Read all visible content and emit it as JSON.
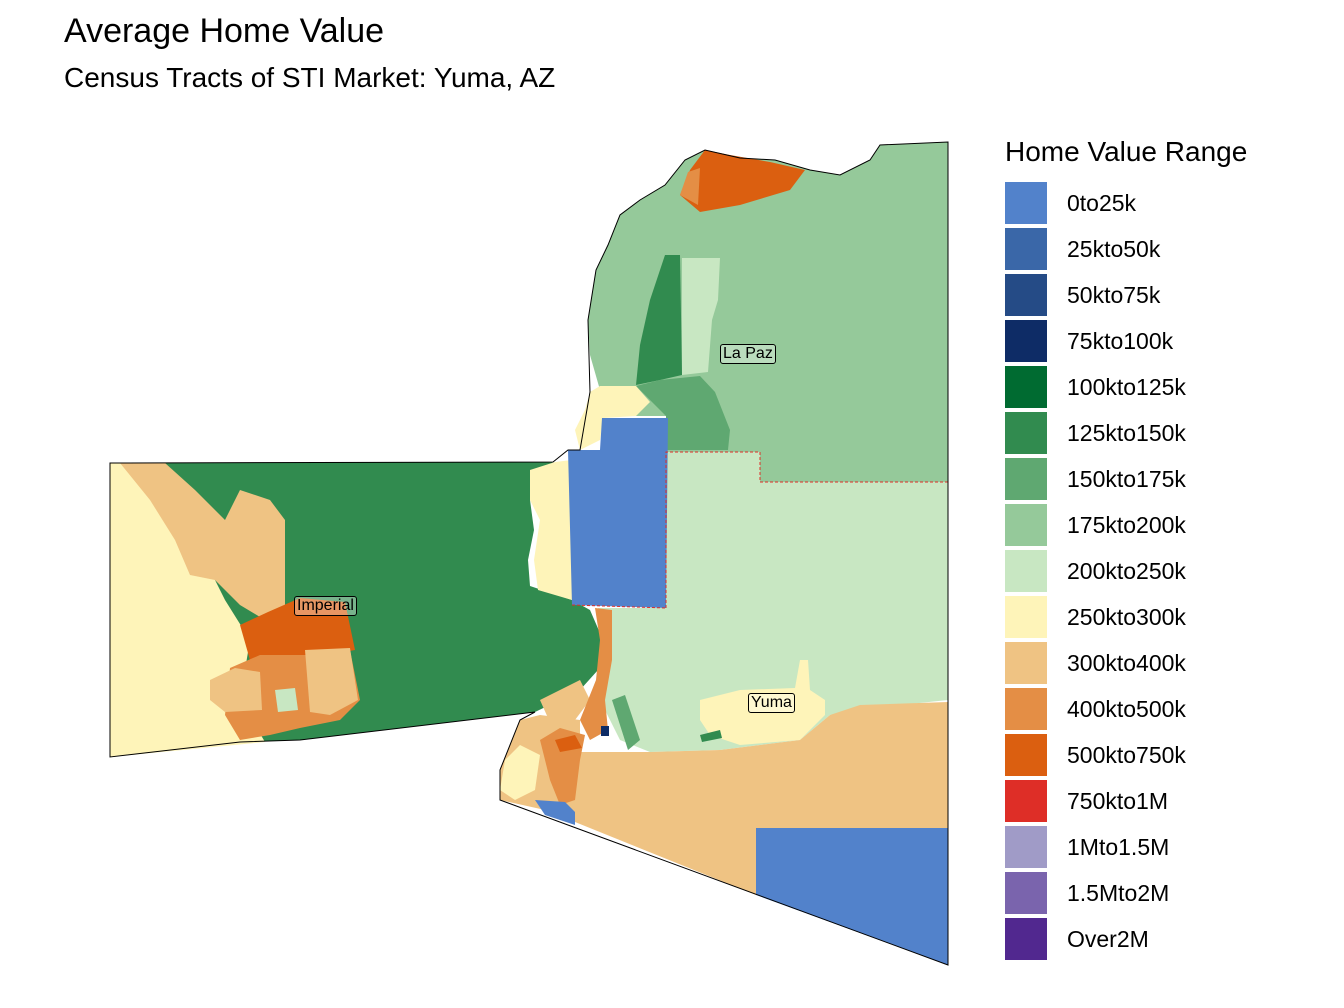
{
  "title": "Average Home Value",
  "subtitle": "Census Tracts of STI Market: Yuma, AZ",
  "legend": {
    "title": "Home Value Range",
    "items": [
      {
        "label": "0to25k",
        "color": "#5282CB"
      },
      {
        "label": "25kto50k",
        "color": "#3A67A8"
      },
      {
        "label": "50kto75k",
        "color": "#254B86"
      },
      {
        "label": "75kto100k",
        "color": "#0E2C66"
      },
      {
        "label": "100kto125k",
        "color": "#006B31"
      },
      {
        "label": "125kto150k",
        "color": "#318B4F"
      },
      {
        "label": "150kto175k",
        "color": "#5FA871"
      },
      {
        "label": "175kto200k",
        "color": "#95C99A"
      },
      {
        "label": "200kto250k",
        "color": "#C8E7C2"
      },
      {
        "label": "250kto300k",
        "color": "#FEF4B9"
      },
      {
        "label": "300kto400k",
        "color": "#EFC383"
      },
      {
        "label": "400kto500k",
        "color": "#E48E45"
      },
      {
        "label": "500kto750k",
        "color": "#DB5F10"
      },
      {
        "label": "750kto1M",
        "color": "#DE2E27"
      },
      {
        "label": "1Mto1.5M",
        "color": "#A09BC7"
      },
      {
        "label": "1.5Mto2M",
        "color": "#7A64AD"
      },
      {
        "label": "Over2M",
        "color": "#51288F"
      }
    ]
  },
  "counties": {
    "la_paz": "La Paz",
    "imperial": "Imperial",
    "yuma": "Yuma"
  }
}
